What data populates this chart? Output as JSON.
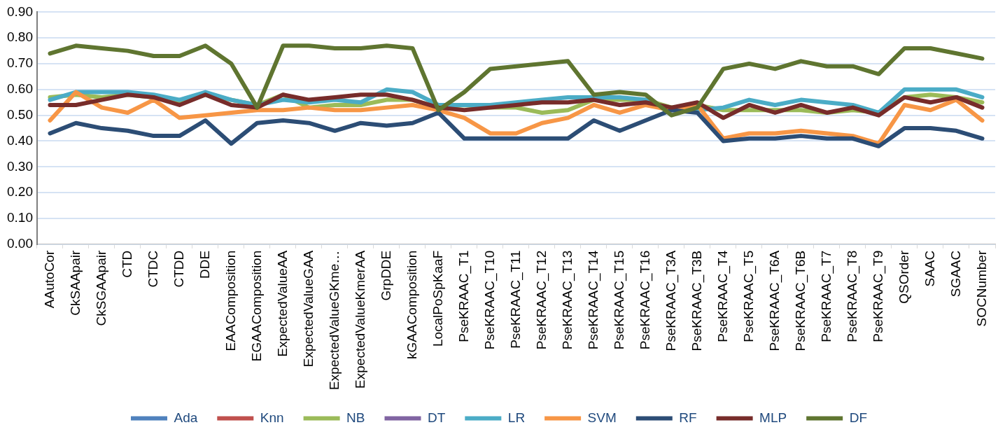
{
  "chart_data": {
    "type": "line",
    "categories": [
      "AAutoCor",
      "CkSAApair",
      "CkSGAApair",
      "CTD",
      "CTDC",
      "CTDD",
      "DDE",
      "EAAComposition",
      "EGAAComposition",
      "ExpectedValueAA",
      "ExpectedValueGAA",
      "ExpectedValueGKme…",
      "ExpectedValueKmerAA",
      "GrpDDE",
      "kGAAComposition",
      "LocalPoSpKaaF",
      "PseKRAAC_T1",
      "PseKRAAC_T10",
      "PseKRAAC_T11",
      "PseKRAAC_T12",
      "PseKRAAC_T13",
      "PseKRAAC_T14",
      "PseKRAAC_T15",
      "PseKRAAC_T16",
      "PseKRAAC_T3A",
      "PseKRAAC_T3B",
      "PseKRAAC_T4",
      "PseKRAAC_T5",
      "PseKRAAC_T6A",
      "PseKRAAC_T6B",
      "PseKRAAC_T7",
      "PseKRAAC_T8",
      "PseKRAAC_T9",
      "QSOrder",
      "SAAC",
      "SGAAC",
      "SOCNumber"
    ],
    "series": [
      {
        "name": "Ada",
        "color": "#4f81bd",
        "values": [
          null,
          null,
          null,
          null,
          null,
          null,
          null,
          null,
          null,
          null,
          null,
          null,
          null,
          null,
          null,
          null,
          null,
          null,
          null,
          null,
          null,
          null,
          null,
          null,
          null,
          null,
          null,
          null,
          null,
          null,
          null,
          null,
          null,
          null,
          null,
          null,
          null
        ]
      },
      {
        "name": "Knn",
        "color": "#c0504d",
        "values": [
          null,
          null,
          null,
          null,
          null,
          null,
          null,
          null,
          null,
          null,
          null,
          null,
          null,
          null,
          null,
          null,
          null,
          null,
          null,
          null,
          null,
          null,
          null,
          null,
          null,
          null,
          null,
          null,
          null,
          null,
          null,
          null,
          null,
          null,
          null,
          null,
          null
        ]
      },
      {
        "name": "NB",
        "color": "#9bbb59",
        "values": [
          0.57,
          0.58,
          0.57,
          0.58,
          0.57,
          0.55,
          0.58,
          0.56,
          0.54,
          0.58,
          0.53,
          0.54,
          0.54,
          0.56,
          0.56,
          0.53,
          0.54,
          0.53,
          0.53,
          0.51,
          0.52,
          0.56,
          0.56,
          0.56,
          0.53,
          0.54,
          0.52,
          0.52,
          0.52,
          0.52,
          0.51,
          0.52,
          0.51,
          0.57,
          0.58,
          0.57,
          0.55
        ]
      },
      {
        "name": "DT",
        "color": "#8064a2",
        "values": [
          null,
          null,
          null,
          null,
          null,
          null,
          null,
          null,
          null,
          null,
          null,
          null,
          null,
          null,
          null,
          null,
          null,
          null,
          null,
          null,
          null,
          null,
          null,
          null,
          null,
          null,
          null,
          null,
          null,
          null,
          null,
          null,
          null,
          null,
          null,
          null,
          null
        ]
      },
      {
        "name": "LR",
        "color": "#4bacc6",
        "values": [
          0.56,
          0.59,
          0.59,
          0.59,
          0.58,
          0.56,
          0.59,
          0.56,
          0.54,
          0.56,
          0.55,
          0.56,
          0.55,
          0.6,
          0.59,
          0.54,
          0.54,
          0.54,
          0.55,
          0.56,
          0.57,
          0.57,
          0.57,
          0.56,
          0.52,
          0.52,
          0.53,
          0.56,
          0.54,
          0.56,
          0.55,
          0.54,
          0.51,
          0.6,
          0.6,
          0.6,
          0.57
        ]
      },
      {
        "name": "SVM",
        "color": "#f79646",
        "values": [
          0.48,
          0.59,
          0.53,
          0.51,
          0.56,
          0.49,
          0.5,
          0.51,
          0.52,
          0.52,
          0.53,
          0.52,
          0.52,
          0.53,
          0.54,
          0.52,
          0.49,
          0.43,
          0.43,
          0.47,
          0.49,
          0.54,
          0.51,
          0.54,
          0.52,
          0.54,
          0.41,
          0.43,
          0.43,
          0.44,
          0.43,
          0.42,
          0.39,
          0.54,
          0.52,
          0.56,
          0.48
        ]
      },
      {
        "name": "RF",
        "color": "#2c4d75",
        "values": [
          0.43,
          0.47,
          0.45,
          0.44,
          0.42,
          0.42,
          0.48,
          0.39,
          0.47,
          0.48,
          0.47,
          0.44,
          0.47,
          0.46,
          0.47,
          0.51,
          0.41,
          0.41,
          0.41,
          0.41,
          0.41,
          0.48,
          0.44,
          0.48,
          0.52,
          0.51,
          0.4,
          0.41,
          0.41,
          0.42,
          0.41,
          0.41,
          0.38,
          0.45,
          0.45,
          0.44,
          0.41
        ]
      },
      {
        "name": "MLP",
        "color": "#772c2a",
        "values": [
          0.54,
          0.54,
          0.56,
          0.58,
          0.57,
          0.54,
          0.58,
          0.54,
          0.53,
          0.58,
          0.56,
          0.57,
          0.58,
          0.58,
          0.56,
          0.53,
          0.52,
          0.53,
          0.54,
          0.55,
          0.55,
          0.56,
          0.54,
          0.55,
          0.53,
          0.55,
          0.49,
          0.54,
          0.51,
          0.54,
          0.51,
          0.53,
          0.5,
          0.57,
          0.55,
          0.57,
          0.53
        ]
      },
      {
        "name": "DF",
        "color": "#5f7530",
        "values": [
          0.74,
          0.77,
          0.76,
          0.75,
          0.73,
          0.73,
          0.77,
          0.7,
          0.53,
          0.77,
          0.77,
          0.76,
          0.76,
          0.77,
          0.76,
          0.52,
          0.59,
          0.68,
          0.69,
          0.7,
          0.71,
          0.58,
          0.59,
          0.58,
          0.5,
          0.53,
          0.68,
          0.7,
          0.68,
          0.71,
          0.69,
          0.69,
          0.66,
          0.76,
          0.76,
          0.74,
          0.72
        ]
      }
    ],
    "ylim": [
      0,
      0.9
    ],
    "yticks": [
      {
        "value": 0,
        "label": "0.00"
      },
      {
        "value": 0.1,
        "label": "0.10"
      },
      {
        "value": 0.2,
        "label": "0.20"
      },
      {
        "value": 0.3,
        "label": "0.30"
      },
      {
        "value": 0.4,
        "label": "0.40"
      },
      {
        "value": 0.5,
        "label": "0.50"
      },
      {
        "value": 0.6,
        "label": "0.60"
      },
      {
        "value": 0.7,
        "label": "0.70"
      },
      {
        "value": 0.8,
        "label": "0.80"
      },
      {
        "value": 0.9,
        "label": "0.90"
      }
    ],
    "grid": "y",
    "legend": "bottom",
    "marker": "none",
    "line_style": "solid"
  }
}
